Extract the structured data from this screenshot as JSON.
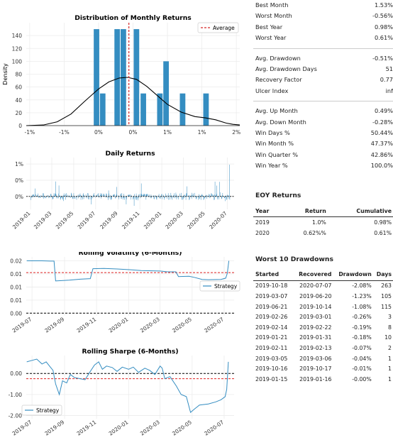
{
  "metrics": [
    {
      "label": "Best Month",
      "value": "1.53%"
    },
    {
      "label": "Worst Month",
      "value": "-0.56%"
    },
    {
      "label": "Best Year",
      "value": "0.98%"
    },
    {
      "label": "Worst Year",
      "value": "0.61%"
    },
    {
      "label": "Avg. Drawdown",
      "value": "-0.51%",
      "gap": true
    },
    {
      "label": "Avg. Drawdown Days",
      "value": "51"
    },
    {
      "label": "Recovery Factor",
      "value": "0.77"
    },
    {
      "label": "Ulcer Index",
      "value": "inf"
    },
    {
      "label": "Avg. Up Month",
      "value": "0.49%",
      "gap": true
    },
    {
      "label": "Avg. Down Month",
      "value": "-0.28%"
    },
    {
      "label": "Win Days %",
      "value": "50.44%"
    },
    {
      "label": "Win Month %",
      "value": "47.37%"
    },
    {
      "label": "Win Quarter %",
      "value": "42.86%"
    },
    {
      "label": "Win Year %",
      "value": "100.0%"
    }
  ],
  "eoy": {
    "title": "EOY Returns",
    "headers": [
      "Year",
      "Return",
      "Cumulative"
    ],
    "rows": [
      [
        "2019",
        "1.0%",
        "0.98%"
      ],
      [
        "2020",
        "0.62%%",
        "0.61%"
      ]
    ]
  },
  "drawdowns": {
    "title": "Worst 10 Drawdowns",
    "headers": [
      "Started",
      "Recovered",
      "Drawdown",
      "Days"
    ],
    "rows": [
      [
        "2019-10-18",
        "2020-07-07",
        "-2.08%",
        "263"
      ],
      [
        "2019-03-07",
        "2019-06-20",
        "-1.23%",
        "105"
      ],
      [
        "2019-06-21",
        "2019-10-14",
        "-1.08%",
        "115"
      ],
      [
        "2019-02-26",
        "2019-03-01",
        "-0.26%",
        "3"
      ],
      [
        "2019-02-14",
        "2019-02-22",
        "-0.19%",
        "8"
      ],
      [
        "2019-01-21",
        "2019-01-31",
        "-0.18%",
        "10"
      ],
      [
        "2019-02-11",
        "2019-02-13",
        "-0.07%",
        "2"
      ],
      [
        "2019-03-05",
        "2019-03-06",
        "-0.04%",
        "1"
      ],
      [
        "2019-10-16",
        "2019-10-17",
        "-0.01%",
        "1"
      ],
      [
        "2019-01-15",
        "2019-01-16",
        "-0.00%",
        "1"
      ]
    ]
  },
  "chart_data": [
    {
      "type": "bar",
      "title": "Distribution of Monthly Returns",
      "ylabel": "Density",
      "xlabel": "",
      "xlim": [
        -0.0105,
        0.0205
      ],
      "ylim": [
        0,
        160
      ],
      "xtick_values": [
        -0.01,
        -0.005,
        0,
        0.005,
        0.01,
        0.015,
        0.02
      ],
      "xtick_labels": [
        "-1%",
        "-1%",
        "0%",
        "0%",
        "1%",
        "1%",
        "2%"
      ],
      "yticks": [
        0,
        20,
        40,
        60,
        80,
        100,
        120,
        140
      ],
      "bars": [
        {
          "x": -0.0003,
          "value": 150
        },
        {
          "x": 0.0006,
          "value": 50
        },
        {
          "x": 0.0027,
          "value": 150
        },
        {
          "x": 0.0036,
          "value": 150
        },
        {
          "x": 0.0055,
          "value": 150
        },
        {
          "x": 0.0065,
          "value": 50
        },
        {
          "x": 0.0089,
          "value": 50
        },
        {
          "x": 0.0098,
          "value": 100
        },
        {
          "x": 0.0122,
          "value": 50
        },
        {
          "x": 0.0156,
          "value": 50
        }
      ],
      "kde": [
        [
          -0.0105,
          0
        ],
        [
          -0.008,
          1
        ],
        [
          -0.006,
          6
        ],
        [
          -0.004,
          18
        ],
        [
          -0.002,
          38
        ],
        [
          0,
          57
        ],
        [
          0.0015,
          68
        ],
        [
          0.003,
          74
        ],
        [
          0.0042,
          75
        ],
        [
          0.0055,
          72
        ],
        [
          0.007,
          61
        ],
        [
          0.0085,
          47
        ],
        [
          0.01,
          33
        ],
        [
          0.012,
          21
        ],
        [
          0.014,
          14
        ],
        [
          0.0155,
          12
        ],
        [
          0.017,
          9
        ],
        [
          0.0185,
          4
        ],
        [
          0.0195,
          2
        ],
        [
          0.0205,
          1
        ]
      ],
      "average": 0.0044,
      "legend": [
        "Average"
      ],
      "legend_position": "top-right",
      "colors": {
        "bar": "#348dc1",
        "kde": "#000000",
        "average": "#d62728"
      }
    },
    {
      "type": "bar",
      "title": "Daily Returns",
      "xlim": [
        "2018-12-20",
        "2020-07-20"
      ],
      "ylim": [
        -0.004,
        0.012
      ],
      "yticks": [
        0,
        0.005,
        0.01
      ],
      "ytick_labels": [
        "0%",
        "0%",
        "1%"
      ],
      "xtick_labels": [
        "2019-01",
        "2019-03",
        "2019-05",
        "2019-07",
        "2019-09",
        "2019-11",
        "2020-01",
        "2020-03",
        "2020-05",
        "2020-07"
      ],
      "xtick_dates": [
        "2019-01-01",
        "2019-03-01",
        "2019-05-01",
        "2019-07-01",
        "2019-09-01",
        "2019-11-01",
        "2020-01-01",
        "2020-03-01",
        "2020-05-01",
        "2020-07-01"
      ],
      "note": "~400 daily returns within about -0.2% to +0.4%, with spikes near 0.45% (2019-03), 0.40% (2019-11) and 0.98% (2020-07).",
      "colors": {
        "line": "#348dc1"
      }
    },
    {
      "type": "line",
      "title": "Rolling Volatility (6-Months)",
      "xlim": [
        "2019-06-20",
        "2020-07-20"
      ],
      "ylim": [
        -0.001,
        0.0215
      ],
      "yticks": [
        0,
        0.005,
        0.01,
        0.015,
        0.02
      ],
      "ytick_labels": [
        "0.00",
        "0.01",
        "0.01",
        "0.01",
        "0.02"
      ],
      "xtick_labels": [
        "2019-07",
        "2019-09",
        "2019-11",
        "2020-01",
        "2020-03",
        "2020-05",
        "2020-07"
      ],
      "xtick_dates": [
        "2019-07-01",
        "2019-09-01",
        "2019-11-01",
        "2020-01-01",
        "2020-03-01",
        "2020-05-01",
        "2020-07-01"
      ],
      "series": [
        {
          "name": "Strategy",
          "points": [
            [
              "2019-06-21",
              0.02
            ],
            [
              "2019-07-20",
              0.02
            ],
            [
              "2019-08-05",
              0.0199
            ],
            [
              "2019-08-12",
              0.0199
            ],
            [
              "2019-08-15",
              0.0123
            ],
            [
              "2019-09-10",
              0.0126
            ],
            [
              "2019-10-01",
              0.013
            ],
            [
              "2019-10-20",
              0.0132
            ],
            [
              "2019-10-25",
              0.017
            ],
            [
              "2019-11-15",
              0.0171
            ],
            [
              "2019-12-10",
              0.0169
            ],
            [
              "2020-01-05",
              0.0166
            ],
            [
              "2020-01-25",
              0.0163
            ],
            [
              "2020-02-15",
              0.0162
            ],
            [
              "2020-03-01",
              0.0161
            ],
            [
              "2020-03-15",
              0.0158
            ],
            [
              "2020-03-31",
              0.0158
            ],
            [
              "2020-04-05",
              0.014
            ],
            [
              "2020-04-25",
              0.0141
            ],
            [
              "2020-05-05",
              0.0137
            ],
            [
              "2020-05-20",
              0.0129
            ],
            [
              "2020-06-01",
              0.0128
            ],
            [
              "2020-06-25",
              0.0129
            ],
            [
              "2020-07-04",
              0.0134
            ],
            [
              "2020-07-07",
              0.0152
            ],
            [
              "2020-07-10",
              0.02
            ]
          ]
        }
      ],
      "hlines": [
        {
          "y": 0.0155,
          "color": "#dd2222",
          "style": "dashed"
        },
        {
          "y": 0,
          "color": "#000000",
          "style": "dashed"
        }
      ],
      "legend_position": "right",
      "colors": {
        "line": "#348dc1"
      }
    },
    {
      "type": "line",
      "title": "Rolling Sharpe (6-Months)",
      "xlim": [
        "2019-06-20",
        "2020-07-20"
      ],
      "ylim": [
        -2.15,
        0.85
      ],
      "yticks": [
        -2,
        -1,
        0
      ],
      "ytick_labels": [
        "-2.00",
        "-1.00",
        "0.00"
      ],
      "xtick_labels": [
        "2019-07",
        "2019-09",
        "2019-11",
        "2020-01",
        "2020-03",
        "2020-05",
        "2020-07"
      ],
      "xtick_dates": [
        "2019-07-01",
        "2019-09-01",
        "2019-11-01",
        "2020-01-01",
        "2020-03-01",
        "2020-05-01",
        "2020-07-01"
      ],
      "series": [
        {
          "name": "Strategy",
          "points": [
            [
              "2019-06-21",
              0.55
            ],
            [
              "2019-07-01",
              0.62
            ],
            [
              "2019-07-10",
              0.68
            ],
            [
              "2019-07-20",
              0.45
            ],
            [
              "2019-07-28",
              0.55
            ],
            [
              "2019-08-05",
              0.3
            ],
            [
              "2019-08-10",
              0.15
            ],
            [
              "2019-08-15",
              -0.5
            ],
            [
              "2019-08-22",
              -1.0
            ],
            [
              "2019-08-28",
              -0.35
            ],
            [
              "2019-09-05",
              -0.45
            ],
            [
              "2019-09-12",
              -0.05
            ],
            [
              "2019-09-20",
              -0.2
            ],
            [
              "2019-10-01",
              -0.25
            ],
            [
              "2019-10-10",
              -0.3
            ],
            [
              "2019-10-20",
              0.1
            ],
            [
              "2019-10-28",
              0.4
            ],
            [
              "2019-11-05",
              0.55
            ],
            [
              "2019-11-12",
              0.2
            ],
            [
              "2019-11-20",
              0.35
            ],
            [
              "2019-12-01",
              0.28
            ],
            [
              "2019-12-10",
              0.1
            ],
            [
              "2019-12-20",
              0.3
            ],
            [
              "2020-01-01",
              0.2
            ],
            [
              "2020-01-10",
              0.3
            ],
            [
              "2020-01-20",
              0.05
            ],
            [
              "2020-02-01",
              0.25
            ],
            [
              "2020-02-10",
              0.15
            ],
            [
              "2020-02-20",
              -0.05
            ],
            [
              "2020-03-01",
              0.35
            ],
            [
              "2020-03-05",
              0.25
            ],
            [
              "2020-03-10",
              -0.25
            ],
            [
              "2020-03-20",
              -0.15
            ],
            [
              "2020-04-01",
              -0.6
            ],
            [
              "2020-04-10",
              -1.0
            ],
            [
              "2020-04-20",
              -1.1
            ],
            [
              "2020-04-28",
              -1.85
            ],
            [
              "2020-05-05",
              -1.7
            ],
            [
              "2020-05-15",
              -1.5
            ],
            [
              "2020-06-01",
              -1.45
            ],
            [
              "2020-06-15",
              -1.35
            ],
            [
              "2020-06-25",
              -1.25
            ],
            [
              "2020-07-03",
              -1.1
            ],
            [
              "2020-07-06",
              -0.75
            ],
            [
              "2020-07-09",
              0.55
            ]
          ]
        }
      ],
      "hlines": [
        {
          "y": -0.25,
          "color": "#dd2222",
          "style": "dashed"
        },
        {
          "y": 0,
          "color": "#000000",
          "style": "dashed"
        }
      ],
      "legend_position": "bottom-left",
      "colors": {
        "line": "#348dc1"
      }
    }
  ]
}
